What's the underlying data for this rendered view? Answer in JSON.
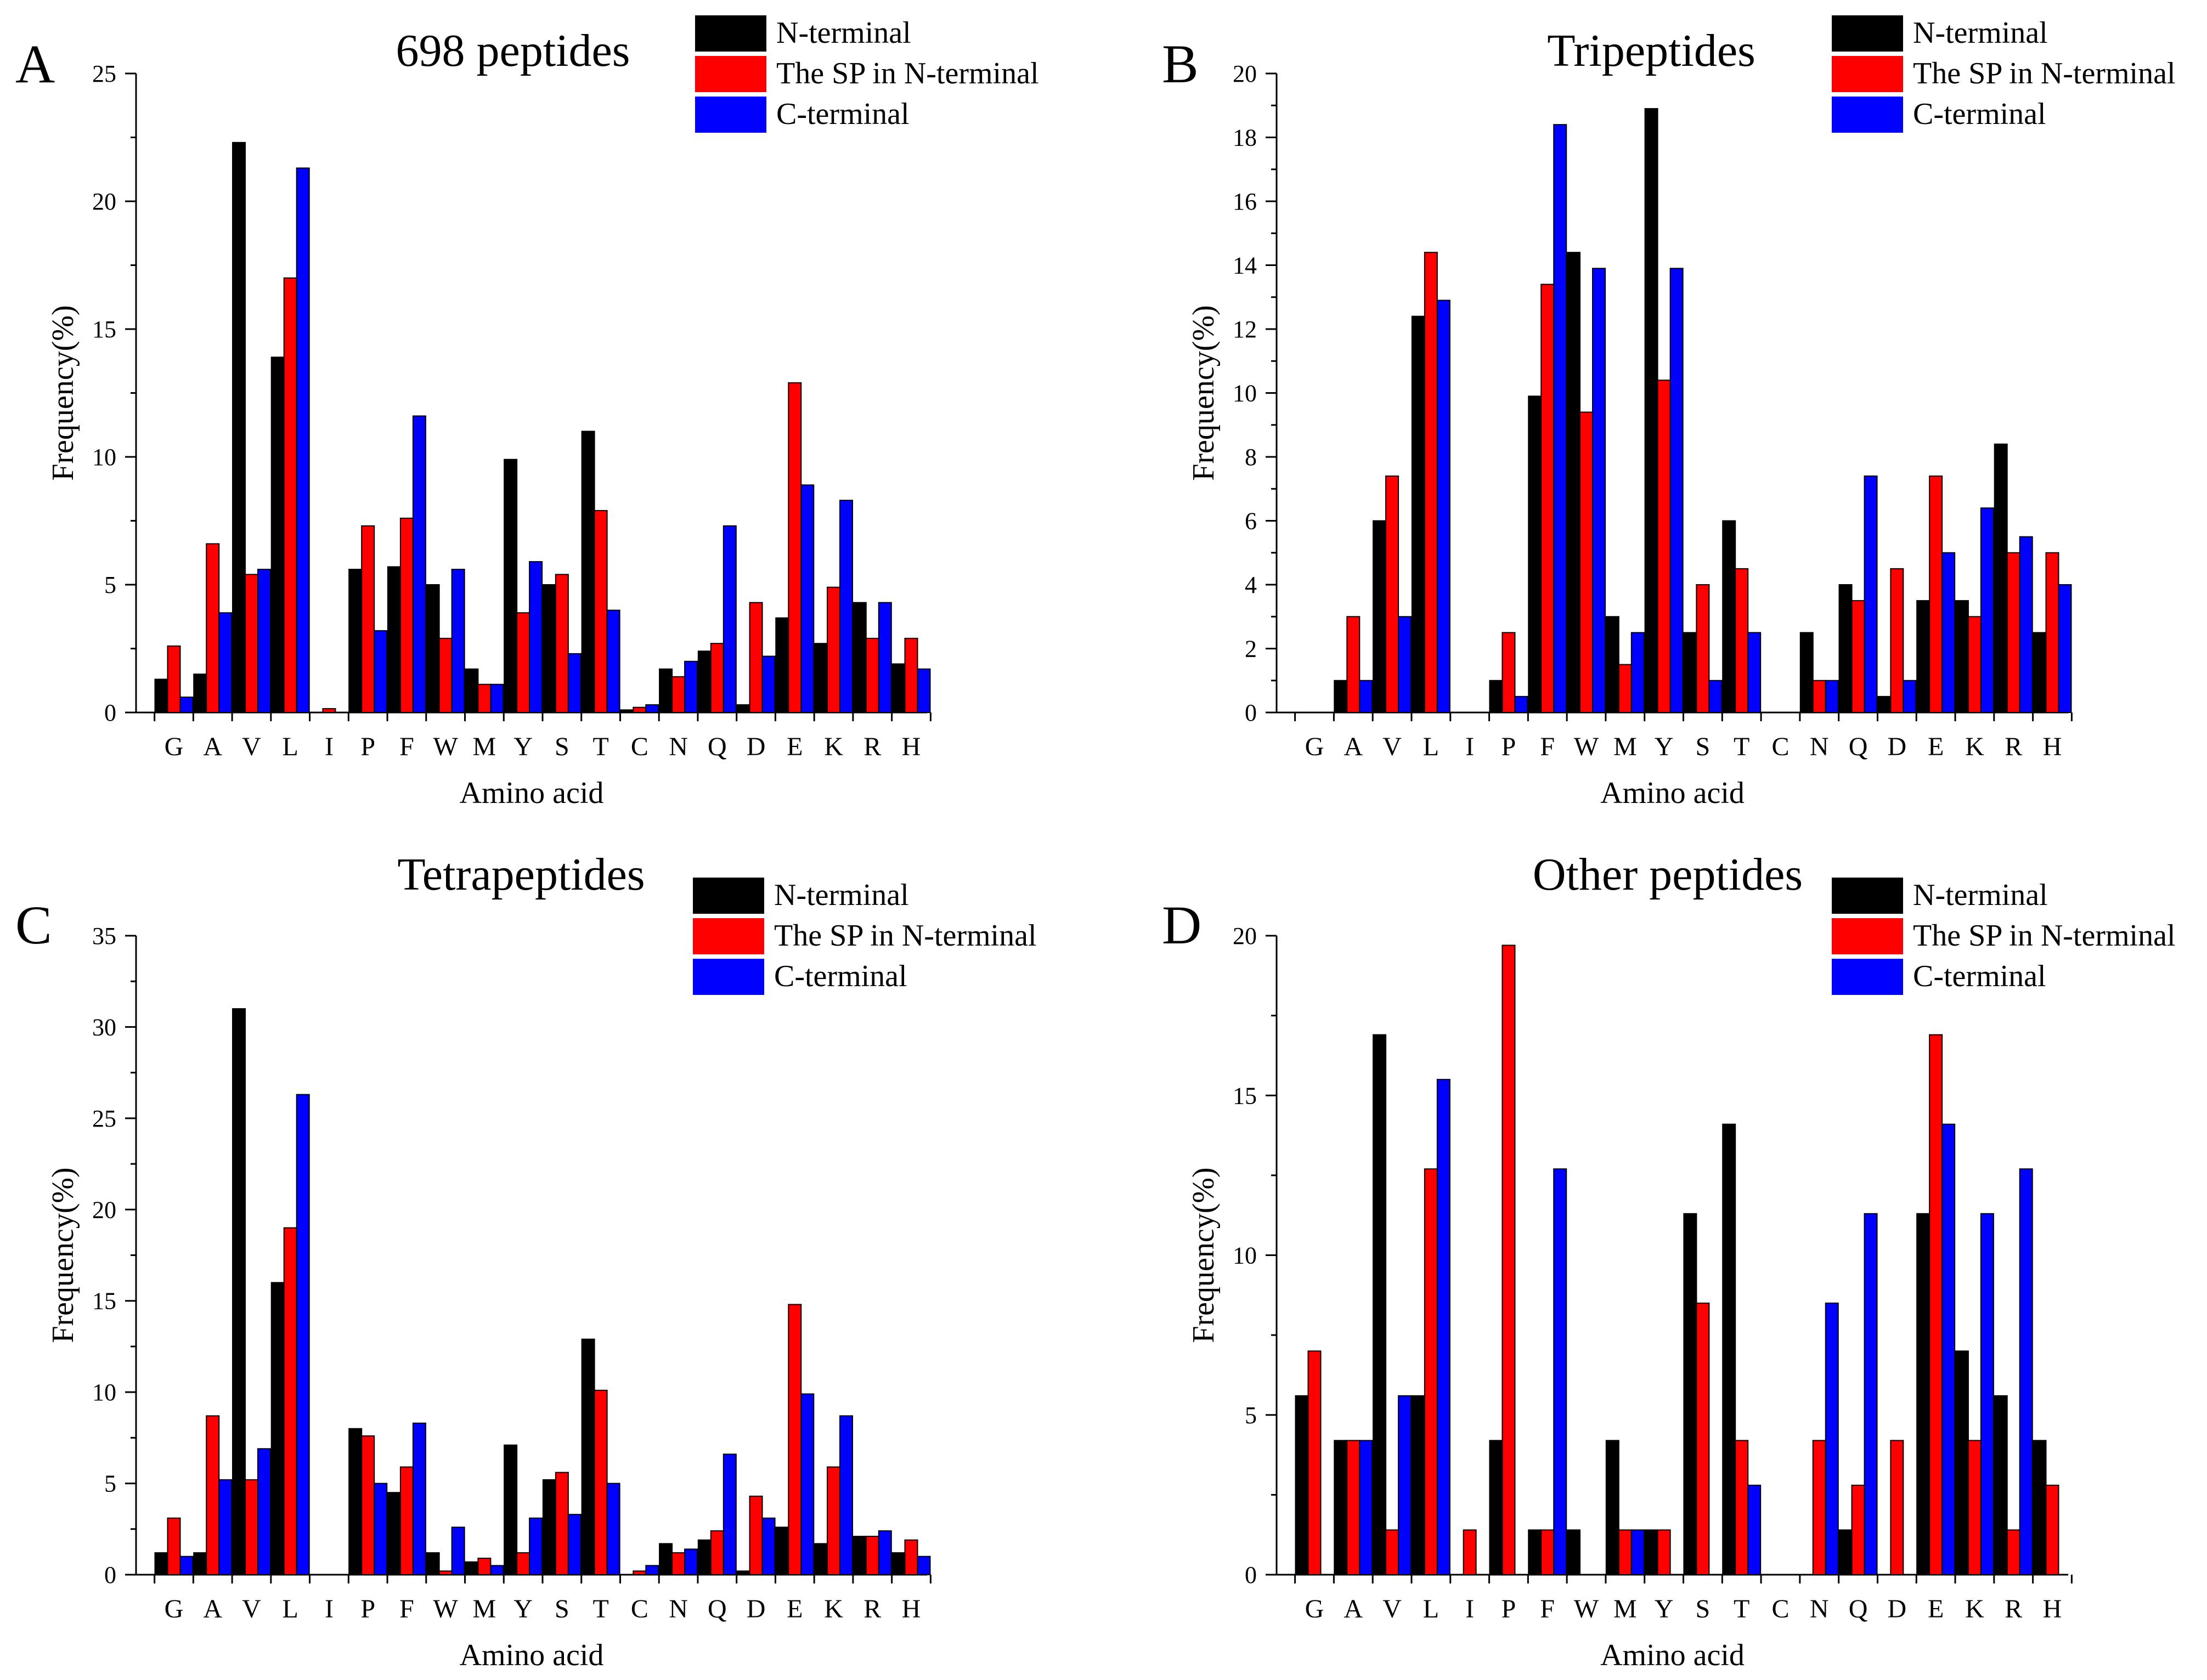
{
  "figure": {
    "xlabel": "Amino acid",
    "ylabel": "Frequency(%)",
    "amino_acids": [
      "G",
      "A",
      "V",
      "L",
      "I",
      "P",
      "F",
      "W",
      "M",
      "Y",
      "S",
      "T",
      "C",
      "N",
      "Q",
      "D",
      "E",
      "K",
      "R",
      "H"
    ],
    "legend": [
      "N-terminal",
      "The SP in N-terminal",
      "C-terminal"
    ],
    "colors": {
      "n_terminal": "#000000",
      "sp_n_terminal": "#ff0000",
      "c_terminal": "#0000ff"
    }
  },
  "chart_data": [
    {
      "panel": "A",
      "type": "bar",
      "title": "698 peptides",
      "xlabel": "Amino acid",
      "ylabel": "Frequency(%)",
      "ylim": [
        0,
        25
      ],
      "yticks": [
        0,
        5,
        10,
        15,
        20,
        25
      ],
      "legend_position": "top-right",
      "categories": [
        "G",
        "A",
        "V",
        "L",
        "I",
        "P",
        "F",
        "W",
        "M",
        "Y",
        "S",
        "T",
        "C",
        "N",
        "Q",
        "D",
        "E",
        "K",
        "R",
        "H"
      ],
      "series": [
        {
          "name": "N-terminal",
          "color": "#000000",
          "values": [
            1.3,
            1.5,
            22.3,
            13.9,
            0,
            5.6,
            5.7,
            5.0,
            1.7,
            9.9,
            5.0,
            11.0,
            0.1,
            1.7,
            2.4,
            0.3,
            3.7,
            2.7,
            4.3,
            1.9
          ]
        },
        {
          "name": "The SP in N-terminal",
          "color": "#ff0000",
          "values": [
            2.6,
            6.6,
            5.4,
            17.0,
            0.15,
            7.3,
            7.6,
            2.9,
            1.1,
            3.9,
            5.4,
            7.9,
            0.2,
            1.4,
            2.7,
            4.3,
            12.9,
            4.9,
            2.9,
            2.9
          ]
        },
        {
          "name": "C-terminal",
          "color": "#0000ff",
          "values": [
            0.6,
            3.9,
            5.6,
            21.3,
            0,
            3.2,
            11.6,
            5.6,
            1.1,
            5.9,
            2.3,
            4.0,
            0.3,
            2.0,
            7.3,
            2.2,
            8.9,
            8.3,
            4.3,
            1.7
          ]
        }
      ]
    },
    {
      "panel": "B",
      "type": "bar",
      "title": "Tripeptides",
      "xlabel": "Amino acid",
      "ylabel": "Frequency(%)",
      "ylim": [
        0,
        20
      ],
      "yticks": [
        0,
        2,
        4,
        6,
        8,
        10,
        12,
        14,
        16,
        18,
        20
      ],
      "legend_position": "top-right",
      "categories": [
        "G",
        "A",
        "V",
        "L",
        "I",
        "P",
        "F",
        "W",
        "M",
        "Y",
        "S",
        "T",
        "C",
        "N",
        "Q",
        "D",
        "E",
        "K",
        "R",
        "H"
      ],
      "series": [
        {
          "name": "N-terminal",
          "color": "#000000",
          "values": [
            0,
            1.0,
            6.0,
            12.4,
            0,
            1.0,
            9.9,
            14.4,
            3.0,
            18.9,
            2.5,
            6.0,
            0,
            2.5,
            4.0,
            0.5,
            3.5,
            3.5,
            8.4,
            2.5
          ]
        },
        {
          "name": "The SP in N-terminal",
          "color": "#ff0000",
          "values": [
            0,
            3.0,
            7.4,
            14.4,
            0,
            2.5,
            13.4,
            9.4,
            1.5,
            10.4,
            4.0,
            4.5,
            0,
            1.0,
            3.5,
            4.5,
            7.4,
            3.0,
            5.0,
            5.0
          ]
        },
        {
          "name": "C-terminal",
          "color": "#0000ff",
          "values": [
            0,
            1.0,
            3.0,
            12.9,
            0,
            0.5,
            18.4,
            13.9,
            2.5,
            13.9,
            1.0,
            2.5,
            0,
            1.0,
            7.4,
            1.0,
            5.0,
            6.4,
            5.5,
            4.0
          ]
        }
      ]
    },
    {
      "panel": "C",
      "type": "bar",
      "title": "Tetrapeptides",
      "xlabel": "Amino acid",
      "ylabel": "Frequency(%)",
      "ylim": [
        0,
        35
      ],
      "yticks": [
        0,
        5,
        10,
        15,
        20,
        25,
        30,
        35
      ],
      "legend_position": "top-right",
      "categories": [
        "G",
        "A",
        "V",
        "L",
        "I",
        "P",
        "F",
        "W",
        "M",
        "Y",
        "S",
        "T",
        "C",
        "N",
        "Q",
        "D",
        "E",
        "K",
        "R",
        "H"
      ],
      "series": [
        {
          "name": "N-terminal",
          "color": "#000000",
          "values": [
            1.2,
            1.2,
            31.0,
            16.0,
            0,
            8.0,
            4.5,
            1.2,
            0.7,
            7.1,
            5.2,
            12.9,
            0,
            1.7,
            1.9,
            0.2,
            2.6,
            1.7,
            2.1,
            1.2
          ]
        },
        {
          "name": "The SP in N-terminal",
          "color": "#ff0000",
          "values": [
            3.1,
            8.7,
            5.2,
            19.0,
            0,
            7.6,
            5.9,
            0.2,
            0.9,
            1.2,
            5.6,
            10.1,
            0.2,
            1.2,
            2.4,
            4.3,
            14.8,
            5.9,
            2.1,
            1.9
          ]
        },
        {
          "name": "C-terminal",
          "color": "#0000ff",
          "values": [
            1.0,
            5.2,
            6.9,
            26.3,
            0,
            5.0,
            8.3,
            2.6,
            0.5,
            3.1,
            3.3,
            5.0,
            0.5,
            1.4,
            6.6,
            3.1,
            9.9,
            8.7,
            2.4,
            1.0
          ]
        }
      ]
    },
    {
      "panel": "D",
      "type": "bar",
      "title": "Other peptides",
      "xlabel": "Amino acid",
      "ylabel": "Frequency(%)",
      "ylim": [
        0,
        20
      ],
      "yticks": [
        0,
        5,
        10,
        15,
        20
      ],
      "legend_position": "top-right",
      "categories": [
        "G",
        "A",
        "V",
        "L",
        "I",
        "P",
        "F",
        "W",
        "M",
        "Y",
        "S",
        "T",
        "C",
        "N",
        "Q",
        "D",
        "E",
        "K",
        "R",
        "H"
      ],
      "series": [
        {
          "name": "N-terminal",
          "color": "#000000",
          "values": [
            5.6,
            4.2,
            16.9,
            5.6,
            0,
            4.2,
            1.4,
            1.4,
            4.2,
            1.4,
            11.3,
            14.1,
            0,
            0,
            1.4,
            0,
            11.3,
            7.0,
            5.6,
            4.2
          ]
        },
        {
          "name": "The SP in N-terminal",
          "color": "#ff0000",
          "values": [
            7.0,
            4.2,
            1.4,
            12.7,
            1.4,
            19.7,
            1.4,
            0,
            1.4,
            1.4,
            8.5,
            4.2,
            0,
            4.2,
            2.8,
            4.2,
            16.9,
            4.2,
            1.4,
            2.8
          ]
        },
        {
          "name": "C-terminal",
          "color": "#0000ff",
          "values": [
            0,
            4.2,
            5.6,
            15.5,
            0,
            0,
            12.7,
            0,
            1.4,
            0,
            0,
            2.8,
            0,
            8.5,
            11.3,
            0,
            14.1,
            11.3,
            12.7,
            0
          ]
        }
      ]
    }
  ]
}
